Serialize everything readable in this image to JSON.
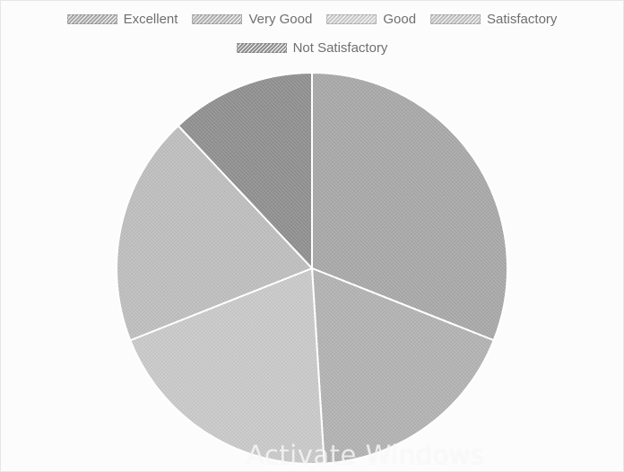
{
  "chart_data": {
    "type": "pie",
    "categories": [
      "Excellent",
      "Very Good",
      "Good",
      "Satisfactory",
      "Not Satisfactory"
    ],
    "values": [
      31,
      18,
      20,
      19,
      12
    ],
    "legend_position": "top",
    "colors": [
      "#a7a7a7",
      "#b1b1b1",
      "#c8c8c8",
      "#bdbdbd",
      "#8f8f8f"
    ]
  },
  "watermark": {
    "text": "Activate Windows"
  }
}
